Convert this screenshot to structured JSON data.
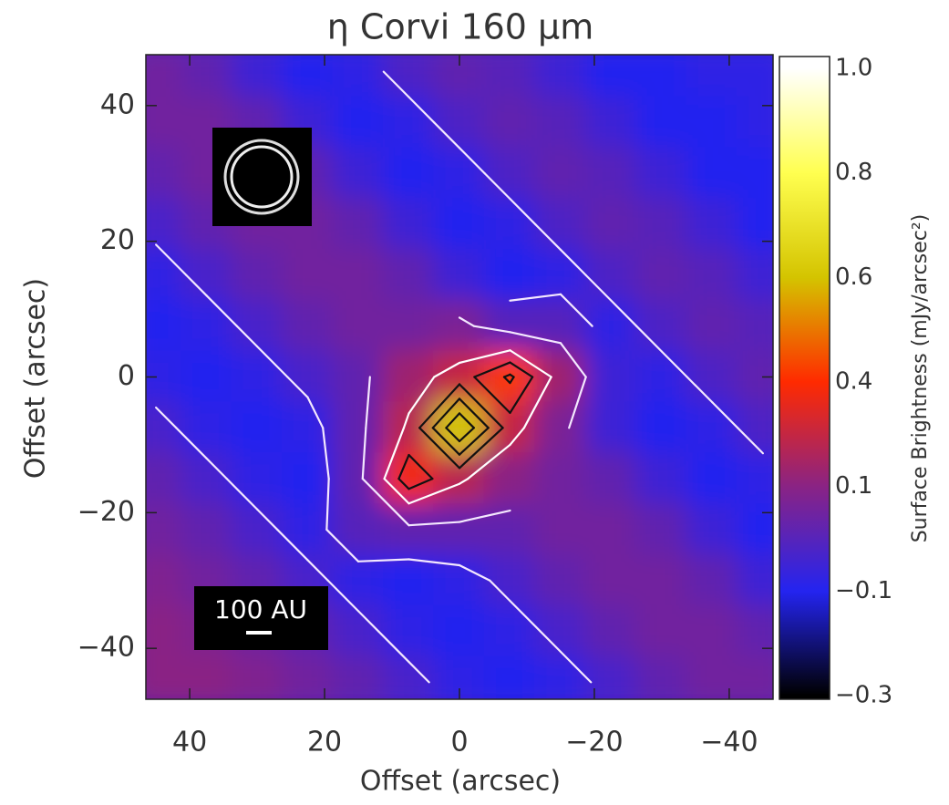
{
  "chart_data": {
    "type": "heatmap",
    "title": "η Corvi 160 μm",
    "xlabel": "Offset (arcsec)",
    "ylabel": "Offset (arcsec)",
    "xlim": [
      46.5,
      -46.5
    ],
    "ylim": [
      -47.5,
      47.5
    ],
    "xticks": [
      40,
      20,
      0,
      {
        "value": -20,
        "label": "−20"
      },
      {
        "value": -40,
        "label": "−40"
      }
    ],
    "yticks": [
      40,
      20,
      0,
      {
        "value": -20,
        "label": "−20"
      },
      {
        "value": -40,
        "label": "−40"
      }
    ],
    "x": [
      45,
      37.5,
      30,
      22.5,
      15,
      7.5,
      0,
      -7.5,
      -15,
      -22.5,
      -30,
      -37.5,
      -45
    ],
    "y": [
      45,
      37.5,
      30,
      22.5,
      15,
      7.5,
      0,
      -7.5,
      -15,
      -22.5,
      -30,
      -37.5,
      -45
    ],
    "z": [
      [
        0.05,
        0.02,
        -0.05,
        -0.1,
        -0.08,
        -0.02,
        0.02,
        0,
        -0.05,
        -0.1,
        -0.1,
        -0.08,
        -0.08
      ],
      [
        0.05,
        0.05,
        0.02,
        -0.05,
        -0.1,
        -0.08,
        -0.02,
        0.02,
        0,
        -0.05,
        -0.1,
        -0.1,
        -0.08
      ],
      [
        0.02,
        0.05,
        0.05,
        0.02,
        -0.05,
        -0.1,
        -0.08,
        -0.02,
        0.02,
        0,
        -0.05,
        -0.1,
        -0.1
      ],
      [
        -0.03,
        0.02,
        0.05,
        0.05,
        0.02,
        -0.05,
        -0.1,
        -0.08,
        -0.02,
        0.02,
        0,
        -0.05,
        -0.1
      ],
      [
        -0.08,
        -0.03,
        0.02,
        0.05,
        0.05,
        0.02,
        -0.05,
        -0.1,
        -0.08,
        -0.02,
        0.02,
        0,
        -0.05
      ],
      [
        -0.1,
        -0.08,
        -0.03,
        0.02,
        0.05,
        0.05,
        0.07,
        0,
        0,
        -0.08,
        -0.02,
        0.02,
        0
      ],
      [
        -0.08,
        -0.1,
        -0.08,
        -0.03,
        0.02,
        0.15,
        0.25,
        0.42,
        0.15,
        -0.05,
        -0.08,
        -0.02,
        0.02
      ],
      [
        -0.03,
        -0.08,
        -0.1,
        -0.08,
        0.02,
        0.22,
        0.6,
        0.25,
        0.07,
        -0.05,
        -0.1,
        -0.08,
        -0.02
      ],
      [
        0.02,
        -0.03,
        -0.08,
        -0.1,
        0.02,
        0.37,
        0.22,
        0.1,
        0.05,
        0.02,
        -0.05,
        -0.1,
        -0.08
      ],
      [
        0.05,
        0.02,
        -0.03,
        -0.08,
        0,
        0.02,
        0.02,
        0.02,
        0.05,
        0.05,
        0.02,
        -0.05,
        -0.1
      ],
      [
        0.08,
        0.05,
        0.02,
        -0.03,
        -0.08,
        -0.1,
        -0.08,
        -0.03,
        0.02,
        0.05,
        0.05,
        0.02,
        -0.05
      ],
      [
        0.1,
        0.08,
        0.05,
        0.02,
        -0.03,
        -0.08,
        -0.1,
        -0.08,
        -0.03,
        0.02,
        0.05,
        0.05,
        0.02
      ],
      [
        0.1,
        0.1,
        0.08,
        0.05,
        0.02,
        -0.03,
        -0.08,
        -0.1,
        -0.08,
        -0.03,
        0.02,
        0.05,
        0.05
      ]
    ],
    "contour_levels": [
      -0.05,
      0.05,
      0.2,
      0.3,
      0.4,
      0.5
    ],
    "contour_colors": [
      "#f4e8ff",
      "#f4e8ff",
      "#ffffff",
      "#111111",
      "#111111",
      "#111111"
    ],
    "colorbar": {
      "label": "Surface Brightness (mJy/arcsec²)",
      "ticks": [
        1.0,
        0.8,
        0.6,
        0.4,
        0.1,
        -0.1,
        -0.3
      ],
      "tick_labels": [
        "1.0",
        "0.8",
        "0.6",
        "0.4",
        "0.1",
        "−0.1",
        "−0.3"
      ],
      "colors": [
        "#ffffff",
        "#ffff50",
        "#d4c400",
        "#ff2a00",
        "#8a2384",
        "#2424f0",
        "#000000"
      ]
    },
    "scale_bar_label": "100 AU"
  }
}
